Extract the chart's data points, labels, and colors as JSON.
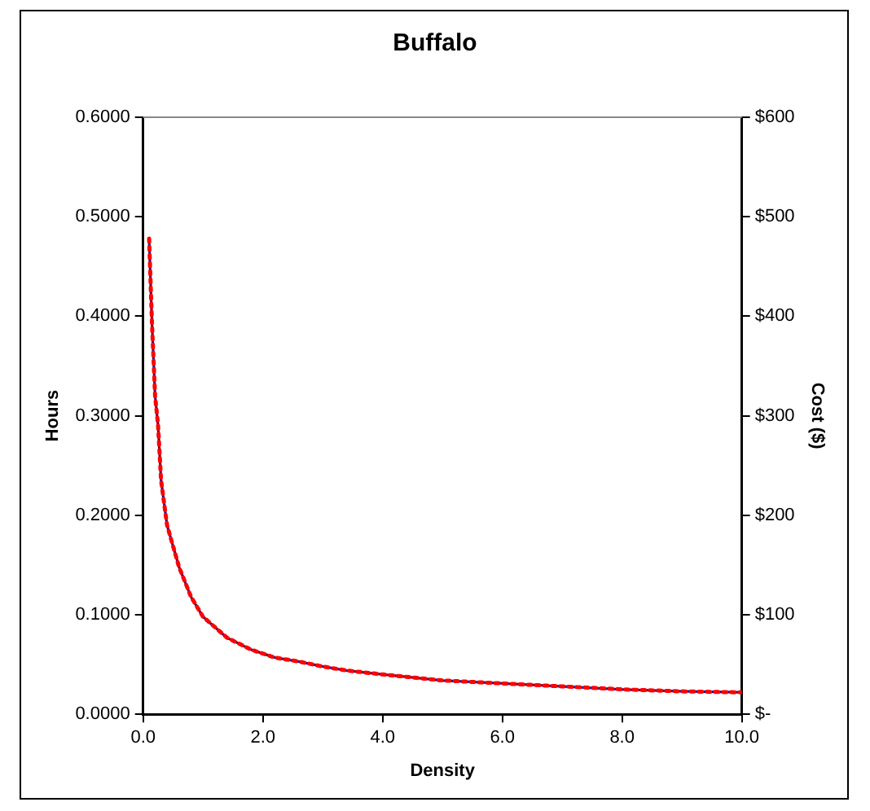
{
  "chart_data": {
    "type": "line",
    "title": "Buffalo",
    "xlabel": "Density",
    "ylabel": "Hours",
    "y2label": "Cost ($)",
    "x": [
      0.1,
      0.15,
      0.2,
      0.25,
      0.3,
      0.4,
      0.6,
      0.8,
      1.0,
      1.4,
      1.8,
      2.2,
      2.6,
      3.0,
      3.4,
      4.0,
      4.5,
      5.0,
      6.0,
      7.0,
      8.0,
      9.0,
      10.0
    ],
    "series": [
      {
        "color": "#000080",
        "line_style": "solid",
        "values": [
          0.478,
          0.39,
          0.32,
          0.29,
          0.235,
          0.19,
          0.148,
          0.118,
          0.098,
          0.077,
          0.065,
          0.057,
          0.053,
          0.048,
          0.044,
          0.04,
          0.037,
          0.034,
          0.031,
          0.028,
          0.025,
          0.023,
          0.022
        ]
      },
      {
        "color": "#ff0000",
        "line_style": "dotted",
        "axis": "y2",
        "values": [
          478,
          390,
          320,
          290,
          235,
          190,
          148,
          118,
          98,
          77,
          65,
          57,
          53,
          48,
          44,
          40,
          37,
          34,
          31,
          28,
          25,
          23,
          22
        ]
      }
    ],
    "xlim": [
      0,
      10
    ],
    "xticks": [
      {
        "value": 0,
        "label": "0.0"
      },
      {
        "value": 2,
        "label": "2.0"
      },
      {
        "value": 4,
        "label": "4.0"
      },
      {
        "value": 6,
        "label": "6.0"
      },
      {
        "value": 8,
        "label": "8.0"
      },
      {
        "value": 10,
        "label": "10.0"
      }
    ],
    "ylim": [
      0,
      0.6
    ],
    "yticks": [
      {
        "value": 0,
        "label": "0.0000"
      },
      {
        "value": 0.1,
        "label": "0.1000"
      },
      {
        "value": 0.2,
        "label": "0.2000"
      },
      {
        "value": 0.3,
        "label": "0.3000"
      },
      {
        "value": 0.4,
        "label": "0.4000"
      },
      {
        "value": 0.5,
        "label": "0.5000"
      },
      {
        "value": 0.6,
        "label": "0.6000"
      }
    ],
    "y2lim": [
      0,
      600
    ],
    "y2ticks": [
      {
        "value": 0,
        "label": "$-"
      },
      {
        "value": 100,
        "label": "$100"
      },
      {
        "value": 200,
        "label": "$200"
      },
      {
        "value": 300,
        "label": "$300"
      },
      {
        "value": 400,
        "label": "$400"
      },
      {
        "value": 500,
        "label": "$500"
      },
      {
        "value": 600,
        "label": "$600"
      }
    ],
    "grid": false,
    "legend": false,
    "marker": "none"
  }
}
